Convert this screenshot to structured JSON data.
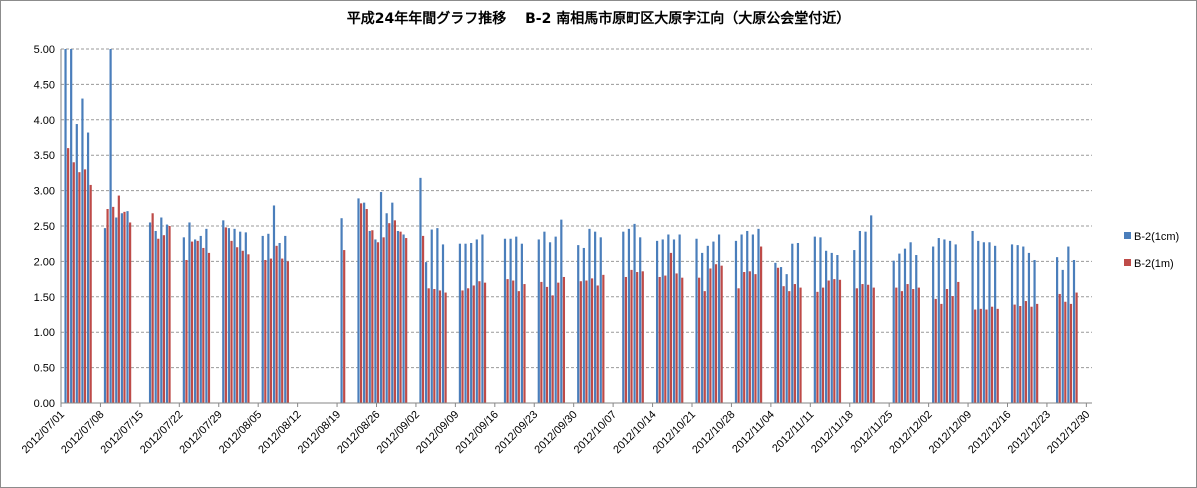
{
  "chart_data": {
    "type": "bar",
    "title": "平成24年年間グラフ推移　 B-2 南相馬市原町区大原字江向（大原公会堂付近）",
    "xlabel": "",
    "ylabel": "",
    "ylim": [
      0,
      5
    ],
    "y_ticks": [
      "0.00",
      "0.50",
      "1.00",
      "1.50",
      "2.00",
      "2.50",
      "3.00",
      "3.50",
      "4.00",
      "4.50",
      "5.00"
    ],
    "x_tick_labels": [
      "2012/07/01",
      "2012/07/08",
      "2012/07/15",
      "2012/07/22",
      "2012/07/29",
      "2012/08/05",
      "2012/08/12",
      "2012/08/19",
      "2012/08/26",
      "2012/09/02",
      "2012/09/09",
      "2012/09/16",
      "2012/09/23",
      "2012/09/30",
      "2012/10/07",
      "2012/10/14",
      "2012/10/21",
      "2012/10/28",
      "2012/11/04",
      "2012/11/11",
      "2012/11/18",
      "2012/11/25",
      "2012/12/02",
      "2012/12/09",
      "2012/12/16",
      "2012/12/23",
      "2012/12/30"
    ],
    "x_start": "2012/07/01",
    "x_end": "2012/12/31",
    "grid": true,
    "legend_position": "right",
    "colors": {
      "B-2(1cm)": "#4a7ebb",
      "B-2(1m)": "#be4b48"
    },
    "series": [
      {
        "name": "B-2(1cm)",
        "values": [
          [
            "2012/07/02",
            5.0
          ],
          [
            "2012/07/03",
            5.0
          ],
          [
            "2012/07/04",
            3.94
          ],
          [
            "2012/07/05",
            4.3
          ],
          [
            "2012/07/06",
            3.82
          ],
          [
            "2012/07/09",
            2.47
          ],
          [
            "2012/07/10",
            5.0
          ],
          [
            "2012/07/11",
            2.62
          ],
          [
            "2012/07/12",
            2.68
          ],
          [
            "2012/07/13",
            2.71
          ],
          [
            "2012/07/17",
            2.55
          ],
          [
            "2012/07/18",
            2.43
          ],
          [
            "2012/07/19",
            2.62
          ],
          [
            "2012/07/20",
            2.52
          ],
          [
            "2012/07/23",
            2.34
          ],
          [
            "2012/07/24",
            2.55
          ],
          [
            "2012/07/25",
            2.31
          ],
          [
            "2012/07/26",
            2.36
          ],
          [
            "2012/07/27",
            2.46
          ],
          [
            "2012/07/30",
            2.58
          ],
          [
            "2012/07/31",
            2.47
          ],
          [
            "2012/08/01",
            2.46
          ],
          [
            "2012/08/02",
            2.42
          ],
          [
            "2012/08/03",
            2.41
          ],
          [
            "2012/08/06",
            2.36
          ],
          [
            "2012/08/07",
            2.39
          ],
          [
            "2012/08/08",
            2.79
          ],
          [
            "2012/08/09",
            2.26
          ],
          [
            "2012/08/10",
            2.36
          ],
          [
            "2012/08/20",
            2.61
          ],
          [
            "2012/08/23",
            2.89
          ],
          [
            "2012/08/24",
            2.83
          ],
          [
            "2012/08/25",
            2.43
          ],
          [
            "2012/08/26",
            2.31
          ],
          [
            "2012/08/27",
            2.98
          ],
          [
            "2012/08/28",
            2.68
          ],
          [
            "2012/08/29",
            2.83
          ],
          [
            "2012/08/30",
            2.43
          ],
          [
            "2012/08/31",
            2.38
          ],
          [
            "2012/09/03",
            3.18
          ],
          [
            "2012/09/04",
            1.99
          ],
          [
            "2012/09/05",
            2.45
          ],
          [
            "2012/09/06",
            2.47
          ],
          [
            "2012/09/07",
            2.24
          ],
          [
            "2012/09/10",
            2.25
          ],
          [
            "2012/09/11",
            2.25
          ],
          [
            "2012/09/12",
            2.26
          ],
          [
            "2012/09/13",
            2.31
          ],
          [
            "2012/09/14",
            2.38
          ],
          [
            "2012/09/18",
            2.32
          ],
          [
            "2012/09/19",
            2.32
          ],
          [
            "2012/09/20",
            2.35
          ],
          [
            "2012/09/21",
            2.25
          ],
          [
            "2012/09/24",
            2.31
          ],
          [
            "2012/09/25",
            2.42
          ],
          [
            "2012/09/26",
            2.27
          ],
          [
            "2012/09/27",
            2.35
          ],
          [
            "2012/09/28",
            2.59
          ],
          [
            "2012/10/01",
            2.23
          ],
          [
            "2012/10/02",
            2.19
          ],
          [
            "2012/10/03",
            2.46
          ],
          [
            "2012/10/04",
            2.42
          ],
          [
            "2012/10/05",
            2.34
          ],
          [
            "2012/10/09",
            2.42
          ],
          [
            "2012/10/10",
            2.46
          ],
          [
            "2012/10/11",
            2.53
          ],
          [
            "2012/10/12",
            2.34
          ],
          [
            "2012/10/15",
            2.29
          ],
          [
            "2012/10/16",
            2.31
          ],
          [
            "2012/10/17",
            2.38
          ],
          [
            "2012/10/18",
            2.31
          ],
          [
            "2012/10/19",
            2.38
          ],
          [
            "2012/10/22",
            2.32
          ],
          [
            "2012/10/23",
            2.12
          ],
          [
            "2012/10/24",
            2.22
          ],
          [
            "2012/10/25",
            2.28
          ],
          [
            "2012/10/26",
            2.38
          ],
          [
            "2012/10/29",
            2.29
          ],
          [
            "2012/10/30",
            2.38
          ],
          [
            "2012/10/31",
            2.43
          ],
          [
            "2012/11/01",
            2.38
          ],
          [
            "2012/11/02",
            2.46
          ],
          [
            "2012/11/05",
            1.98
          ],
          [
            "2012/11/06",
            1.92
          ],
          [
            "2012/11/07",
            1.82
          ],
          [
            "2012/11/08",
            2.25
          ],
          [
            "2012/11/09",
            2.26
          ],
          [
            "2012/11/12",
            2.35
          ],
          [
            "2012/11/13",
            2.34
          ],
          [
            "2012/11/14",
            2.15
          ],
          [
            "2012/11/15",
            2.12
          ],
          [
            "2012/11/16",
            2.09
          ],
          [
            "2012/11/19",
            2.16
          ],
          [
            "2012/11/20",
            2.43
          ],
          [
            "2012/11/21",
            2.42
          ],
          [
            "2012/11/22",
            2.65
          ],
          [
            "2012/11/26",
            2.01
          ],
          [
            "2012/11/27",
            2.11
          ],
          [
            "2012/11/28",
            2.18
          ],
          [
            "2012/11/29",
            2.27
          ],
          [
            "2012/11/30",
            2.09
          ],
          [
            "2012/12/03",
            2.21
          ],
          [
            "2012/12/04",
            2.33
          ],
          [
            "2012/12/05",
            2.31
          ],
          [
            "2012/12/06",
            2.29
          ],
          [
            "2012/12/07",
            2.24
          ],
          [
            "2012/12/10",
            2.43
          ],
          [
            "2012/12/11",
            2.29
          ],
          [
            "2012/12/12",
            2.27
          ],
          [
            "2012/12/13",
            2.27
          ],
          [
            "2012/12/14",
            2.22
          ],
          [
            "2012/12/17",
            2.24
          ],
          [
            "2012/12/18",
            2.23
          ],
          [
            "2012/12/19",
            2.21
          ],
          [
            "2012/12/20",
            2.12
          ],
          [
            "2012/12/21",
            2.02
          ],
          [
            "2012/12/25",
            2.06
          ],
          [
            "2012/12/26",
            1.88
          ],
          [
            "2012/12/27",
            2.21
          ],
          [
            "2012/12/28",
            2.02
          ]
        ]
      },
      {
        "name": "B-2(1m)",
        "values": [
          [
            "2012/07/02",
            3.6
          ],
          [
            "2012/07/03",
            3.4
          ],
          [
            "2012/07/04",
            3.26
          ],
          [
            "2012/07/05",
            3.3
          ],
          [
            "2012/07/06",
            3.08
          ],
          [
            "2012/07/09",
            2.74
          ],
          [
            "2012/07/10",
            2.77
          ],
          [
            "2012/07/11",
            2.93
          ],
          [
            "2012/07/12",
            2.7
          ],
          [
            "2012/07/13",
            2.55
          ],
          [
            "2012/07/17",
            2.68
          ],
          [
            "2012/07/18",
            2.32
          ],
          [
            "2012/07/19",
            2.37
          ],
          [
            "2012/07/20",
            2.5
          ],
          [
            "2012/07/23",
            2.02
          ],
          [
            "2012/07/24",
            2.28
          ],
          [
            "2012/07/25",
            2.29
          ],
          [
            "2012/07/26",
            2.19
          ],
          [
            "2012/07/27",
            2.12
          ],
          [
            "2012/07/30",
            2.48
          ],
          [
            "2012/07/31",
            2.29
          ],
          [
            "2012/08/01",
            2.2
          ],
          [
            "2012/08/02",
            2.15
          ],
          [
            "2012/08/03",
            2.1
          ],
          [
            "2012/08/06",
            2.02
          ],
          [
            "2012/08/07",
            2.04
          ],
          [
            "2012/08/08",
            2.22
          ],
          [
            "2012/08/09",
            2.04
          ],
          [
            "2012/08/10",
            2.0
          ],
          [
            "2012/08/20",
            2.16
          ],
          [
            "2012/08/23",
            2.82
          ],
          [
            "2012/08/24",
            2.74
          ],
          [
            "2012/08/25",
            2.44
          ],
          [
            "2012/08/26",
            2.27
          ],
          [
            "2012/08/27",
            2.34
          ],
          [
            "2012/08/28",
            2.54
          ],
          [
            "2012/08/29",
            2.58
          ],
          [
            "2012/08/30",
            2.42
          ],
          [
            "2012/08/31",
            2.33
          ],
          [
            "2012/09/03",
            2.36
          ],
          [
            "2012/09/04",
            1.62
          ],
          [
            "2012/09/05",
            1.61
          ],
          [
            "2012/09/06",
            1.59
          ],
          [
            "2012/09/07",
            1.56
          ],
          [
            "2012/09/10",
            1.59
          ],
          [
            "2012/09/11",
            1.62
          ],
          [
            "2012/09/12",
            1.66
          ],
          [
            "2012/09/13",
            1.72
          ],
          [
            "2012/09/14",
            1.7
          ],
          [
            "2012/09/18",
            1.75
          ],
          [
            "2012/09/19",
            1.73
          ],
          [
            "2012/09/20",
            1.58
          ],
          [
            "2012/09/21",
            1.68
          ],
          [
            "2012/09/24",
            1.71
          ],
          [
            "2012/09/25",
            1.64
          ],
          [
            "2012/09/26",
            1.52
          ],
          [
            "2012/09/27",
            1.7
          ],
          [
            "2012/09/28",
            1.78
          ],
          [
            "2012/10/01",
            1.72
          ],
          [
            "2012/10/02",
            1.73
          ],
          [
            "2012/10/03",
            1.76
          ],
          [
            "2012/10/04",
            1.66
          ],
          [
            "2012/10/05",
            1.81
          ],
          [
            "2012/10/09",
            1.78
          ],
          [
            "2012/10/10",
            1.88
          ],
          [
            "2012/10/11",
            1.85
          ],
          [
            "2012/10/12",
            1.86
          ],
          [
            "2012/10/15",
            1.78
          ],
          [
            "2012/10/16",
            1.8
          ],
          [
            "2012/10/17",
            2.12
          ],
          [
            "2012/10/18",
            1.83
          ],
          [
            "2012/10/19",
            1.77
          ],
          [
            "2012/10/22",
            1.77
          ],
          [
            "2012/10/23",
            1.58
          ],
          [
            "2012/10/24",
            1.9
          ],
          [
            "2012/10/25",
            1.96
          ],
          [
            "2012/10/26",
            1.94
          ],
          [
            "2012/10/29",
            1.62
          ],
          [
            "2012/10/30",
            1.85
          ],
          [
            "2012/10/31",
            1.86
          ],
          [
            "2012/11/01",
            1.82
          ],
          [
            "2012/11/02",
            2.21
          ],
          [
            "2012/11/05",
            1.91
          ],
          [
            "2012/11/06",
            1.65
          ],
          [
            "2012/11/07",
            1.58
          ],
          [
            "2012/11/08",
            1.68
          ],
          [
            "2012/11/09",
            1.63
          ],
          [
            "2012/11/12",
            1.57
          ],
          [
            "2012/11/13",
            1.63
          ],
          [
            "2012/11/14",
            1.73
          ],
          [
            "2012/11/15",
            1.75
          ],
          [
            "2012/11/16",
            1.74
          ],
          [
            "2012/11/19",
            1.62
          ],
          [
            "2012/11/20",
            1.68
          ],
          [
            "2012/11/21",
            1.67
          ],
          [
            "2012/11/22",
            1.63
          ],
          [
            "2012/11/26",
            1.63
          ],
          [
            "2012/11/27",
            1.58
          ],
          [
            "2012/11/28",
            1.68
          ],
          [
            "2012/11/29",
            1.61
          ],
          [
            "2012/11/30",
            1.63
          ],
          [
            "2012/12/03",
            1.47
          ],
          [
            "2012/12/04",
            1.4
          ],
          [
            "2012/12/05",
            1.61
          ],
          [
            "2012/12/06",
            1.51
          ],
          [
            "2012/12/07",
            1.71
          ],
          [
            "2012/12/10",
            1.32
          ],
          [
            "2012/12/11",
            1.33
          ],
          [
            "2012/12/12",
            1.32
          ],
          [
            "2012/12/13",
            1.36
          ],
          [
            "2012/12/14",
            1.33
          ],
          [
            "2012/12/17",
            1.39
          ],
          [
            "2012/12/18",
            1.37
          ],
          [
            "2012/12/19",
            1.44
          ],
          [
            "2012/12/20",
            1.36
          ],
          [
            "2012/12/21",
            1.4
          ],
          [
            "2012/12/25",
            1.54
          ],
          [
            "2012/12/26",
            1.43
          ],
          [
            "2012/12/27",
            1.4
          ],
          [
            "2012/12/28",
            1.56
          ]
        ]
      }
    ]
  }
}
